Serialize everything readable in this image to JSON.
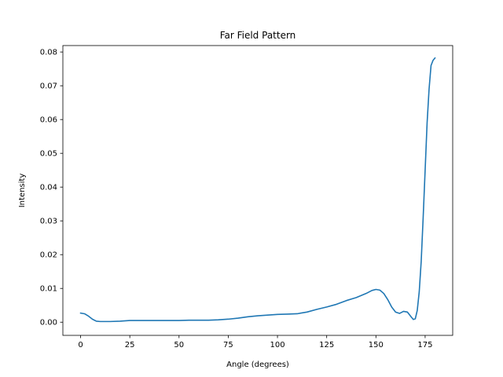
{
  "chart_data": {
    "type": "line",
    "title": "Far Field Pattern",
    "xlabel": "Angle (degrees)",
    "ylabel": "Intensity",
    "xlim": [
      -9,
      189
    ],
    "ylim": [
      -0.0039,
      0.0819
    ],
    "xticks": [
      0,
      25,
      50,
      75,
      100,
      125,
      150,
      175
    ],
    "yticks": [
      0.0,
      0.01,
      0.02,
      0.03,
      0.04,
      0.05,
      0.06,
      0.07,
      0.08
    ],
    "ytick_labels": [
      "0.00",
      "0.01",
      "0.02",
      "0.03",
      "0.04",
      "0.05",
      "0.06",
      "0.07",
      "0.08"
    ],
    "grid": false,
    "colors": {
      "line": "#1f77b4"
    },
    "series": [
      {
        "x": [
          0,
          2,
          4,
          6,
          8,
          10,
          12,
          15,
          20,
          25,
          30,
          35,
          40,
          45,
          50,
          55,
          60,
          65,
          70,
          75,
          80,
          85,
          90,
          95,
          100,
          105,
          110,
          115,
          120,
          125,
          130,
          135,
          140,
          145,
          148,
          150,
          152,
          154,
          156,
          158,
          160,
          162,
          164,
          166,
          168,
          169,
          170,
          171,
          172,
          173,
          174,
          175,
          176,
          177,
          178,
          179,
          180
        ],
        "y": [
          0.0027,
          0.0025,
          0.0018,
          0.0009,
          0.0003,
          0.0002,
          0.0002,
          0.0002,
          0.0003,
          0.0005,
          0.0005,
          0.0005,
          0.0005,
          0.0005,
          0.0005,
          0.0006,
          0.0006,
          0.0006,
          0.0007,
          0.0009,
          0.0012,
          0.0016,
          0.0019,
          0.0021,
          0.0023,
          0.0024,
          0.0025,
          0.003,
          0.0038,
          0.0045,
          0.0053,
          0.0064,
          0.0073,
          0.0085,
          0.0094,
          0.0097,
          0.0095,
          0.0085,
          0.0067,
          0.0045,
          0.003,
          0.0026,
          0.0032,
          0.003,
          0.0015,
          0.0008,
          0.001,
          0.0035,
          0.009,
          0.018,
          0.031,
          0.045,
          0.059,
          0.069,
          0.076,
          0.0775,
          0.0782
        ]
      }
    ]
  }
}
